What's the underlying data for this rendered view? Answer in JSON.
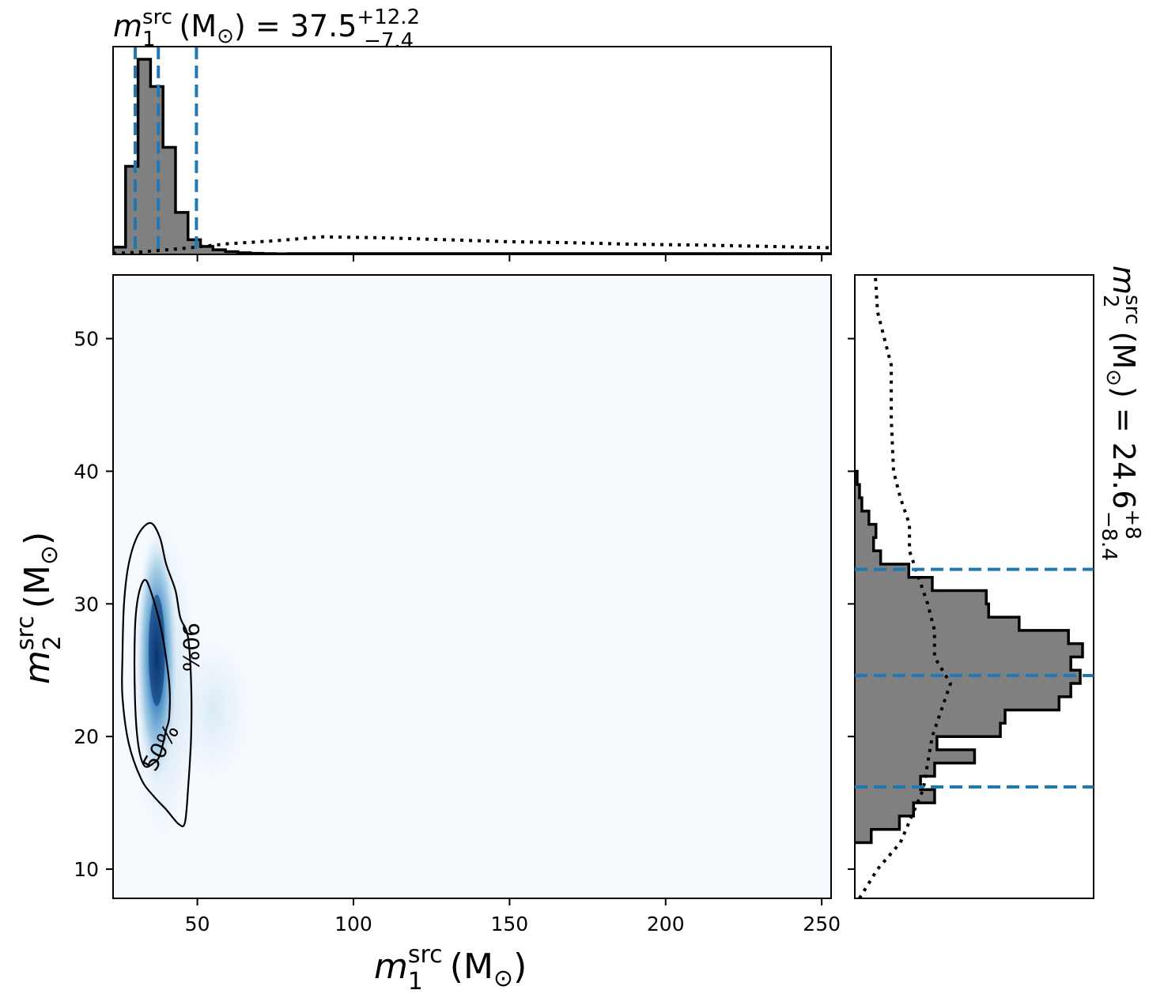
{
  "chart_data": {
    "type": "corner-plot",
    "colors": {
      "density": "#08306b",
      "density_low": "#f7fbff",
      "hist_fill": "#808080",
      "hist_edge": "#000000",
      "quantile_line": "#1f77b4",
      "prior_line": "#000000"
    },
    "joint": {
      "type": "heatmap",
      "xlim": [
        23,
        253
      ],
      "ylim": [
        7.8,
        54.8
      ],
      "xticks": [
        50,
        100,
        150,
        200,
        250
      ],
      "yticks": [
        10,
        20,
        30,
        40,
        50
      ],
      "xlabel": {
        "var": "m",
        "sub": "1",
        "sup": "src",
        "unit": "(M",
        "unit_sub": "⊙",
        "unit_end": ")"
      },
      "ylabel": {
        "var": "m",
        "sub": "2",
        "sup": "src",
        "unit": "(M",
        "unit_sub": "⊙",
        "unit_end": ")"
      },
      "density_peak": {
        "x": 37,
        "y": 26
      },
      "contours": [
        {
          "label": "50%",
          "points": [
            [
              31,
              19.5
            ],
            [
              30,
              23
            ],
            [
              30,
              28
            ],
            [
              31,
              30.5
            ],
            [
              33,
              31.8
            ],
            [
              35,
              31
            ],
            [
              38.5,
              28
            ],
            [
              41,
              24
            ],
            [
              41,
              21.5
            ],
            [
              40,
              20.5
            ],
            [
              38,
              18.6
            ],
            [
              36,
              18
            ],
            [
              33,
              17.8
            ],
            [
              31,
              19.5
            ]
          ]
        },
        {
          "label": "90%",
          "points": [
            [
              26,
              23
            ],
            [
              26,
              26
            ],
            [
              26.5,
              30
            ],
            [
              28,
              33
            ],
            [
              31,
              35.2
            ],
            [
              35,
              36.1
            ],
            [
              38,
              35
            ],
            [
              40,
              33
            ],
            [
              43,
              31
            ],
            [
              44.5,
              29
            ],
            [
              47,
              27.5
            ],
            [
              48,
              24
            ],
            [
              48,
              20
            ],
            [
              47,
              16
            ],
            [
              46,
              13.5
            ],
            [
              44,
              13.4
            ],
            [
              40,
              14.5
            ],
            [
              36,
              15.5
            ],
            [
              32,
              16.8
            ],
            [
              28,
              19.5
            ],
            [
              26,
              23
            ]
          ]
        }
      ]
    },
    "m1_marginal": {
      "title": {
        "var": "m",
        "sub": "1",
        "sup": "src",
        "unit": "(M",
        "unit_sub": "⊙",
        "unit_end": ") = 37.5",
        "plus": "+12.2",
        "minus": "−7.4"
      },
      "xlim": [
        23,
        253
      ],
      "bins": [
        23,
        27,
        31,
        35,
        39,
        43,
        47,
        51,
        55,
        59,
        63,
        67,
        71,
        75,
        79
      ],
      "counts": [
        0.035,
        0.42,
        0.93,
        0.8,
        0.51,
        0.2,
        0.07,
        0.038,
        0.022,
        0.013,
        0.008,
        0.005,
        0.004,
        0.003
      ],
      "quantiles": [
        30.1,
        37.5,
        49.7
      ],
      "prior": {
        "x": [
          23,
          30,
          45,
          60,
          75,
          90,
          110,
          130,
          150,
          170,
          190,
          210,
          230,
          253
        ],
        "y": [
          0.005,
          0.01,
          0.03,
          0.055,
          0.07,
          0.09,
          0.085,
          0.075,
          0.065,
          0.06,
          0.052,
          0.048,
          0.042,
          0.034
        ]
      }
    },
    "m2_marginal": {
      "title": {
        "var": "m",
        "sub": "2",
        "sup": "src",
        "unit": "(M",
        "unit_sub": "⊙",
        "unit_end": ") = 24.6",
        "plus": "+8",
        "minus": "−8.4"
      },
      "ylim": [
        7.8,
        54.8
      ],
      "bins": [
        12,
        13,
        14,
        15,
        16,
        17,
        18,
        19,
        20,
        21,
        22,
        23,
        24,
        25,
        26,
        27,
        28,
        29,
        30,
        31,
        32,
        33,
        34,
        35,
        36,
        37,
        38,
        39,
        40
      ],
      "counts": [
        0.07,
        0.19,
        0.25,
        0.34,
        0.28,
        0.34,
        0.51,
        0.35,
        0.62,
        0.64,
        0.87,
        0.92,
        0.96,
        0.92,
        0.97,
        0.91,
        0.7,
        0.57,
        0.56,
        0.33,
        0.23,
        0.11,
        0.08,
        0.09,
        0.06,
        0.03,
        0.02,
        0.01
      ],
      "quantiles": [
        16.2,
        24.6,
        32.6
      ],
      "prior": {
        "y": [
          7.8,
          10,
          12,
          14,
          16,
          18,
          20,
          22,
          24,
          26,
          28,
          30,
          32,
          34,
          36,
          38,
          40,
          44,
          48,
          52,
          54.8
        ],
        "x": [
          0.02,
          0.1,
          0.2,
          0.25,
          0.3,
          0.32,
          0.34,
          0.38,
          0.42,
          0.35,
          0.35,
          0.32,
          0.28,
          0.24,
          0.24,
          0.2,
          0.17,
          0.16,
          0.16,
          0.1,
          0.09
        ]
      }
    }
  }
}
